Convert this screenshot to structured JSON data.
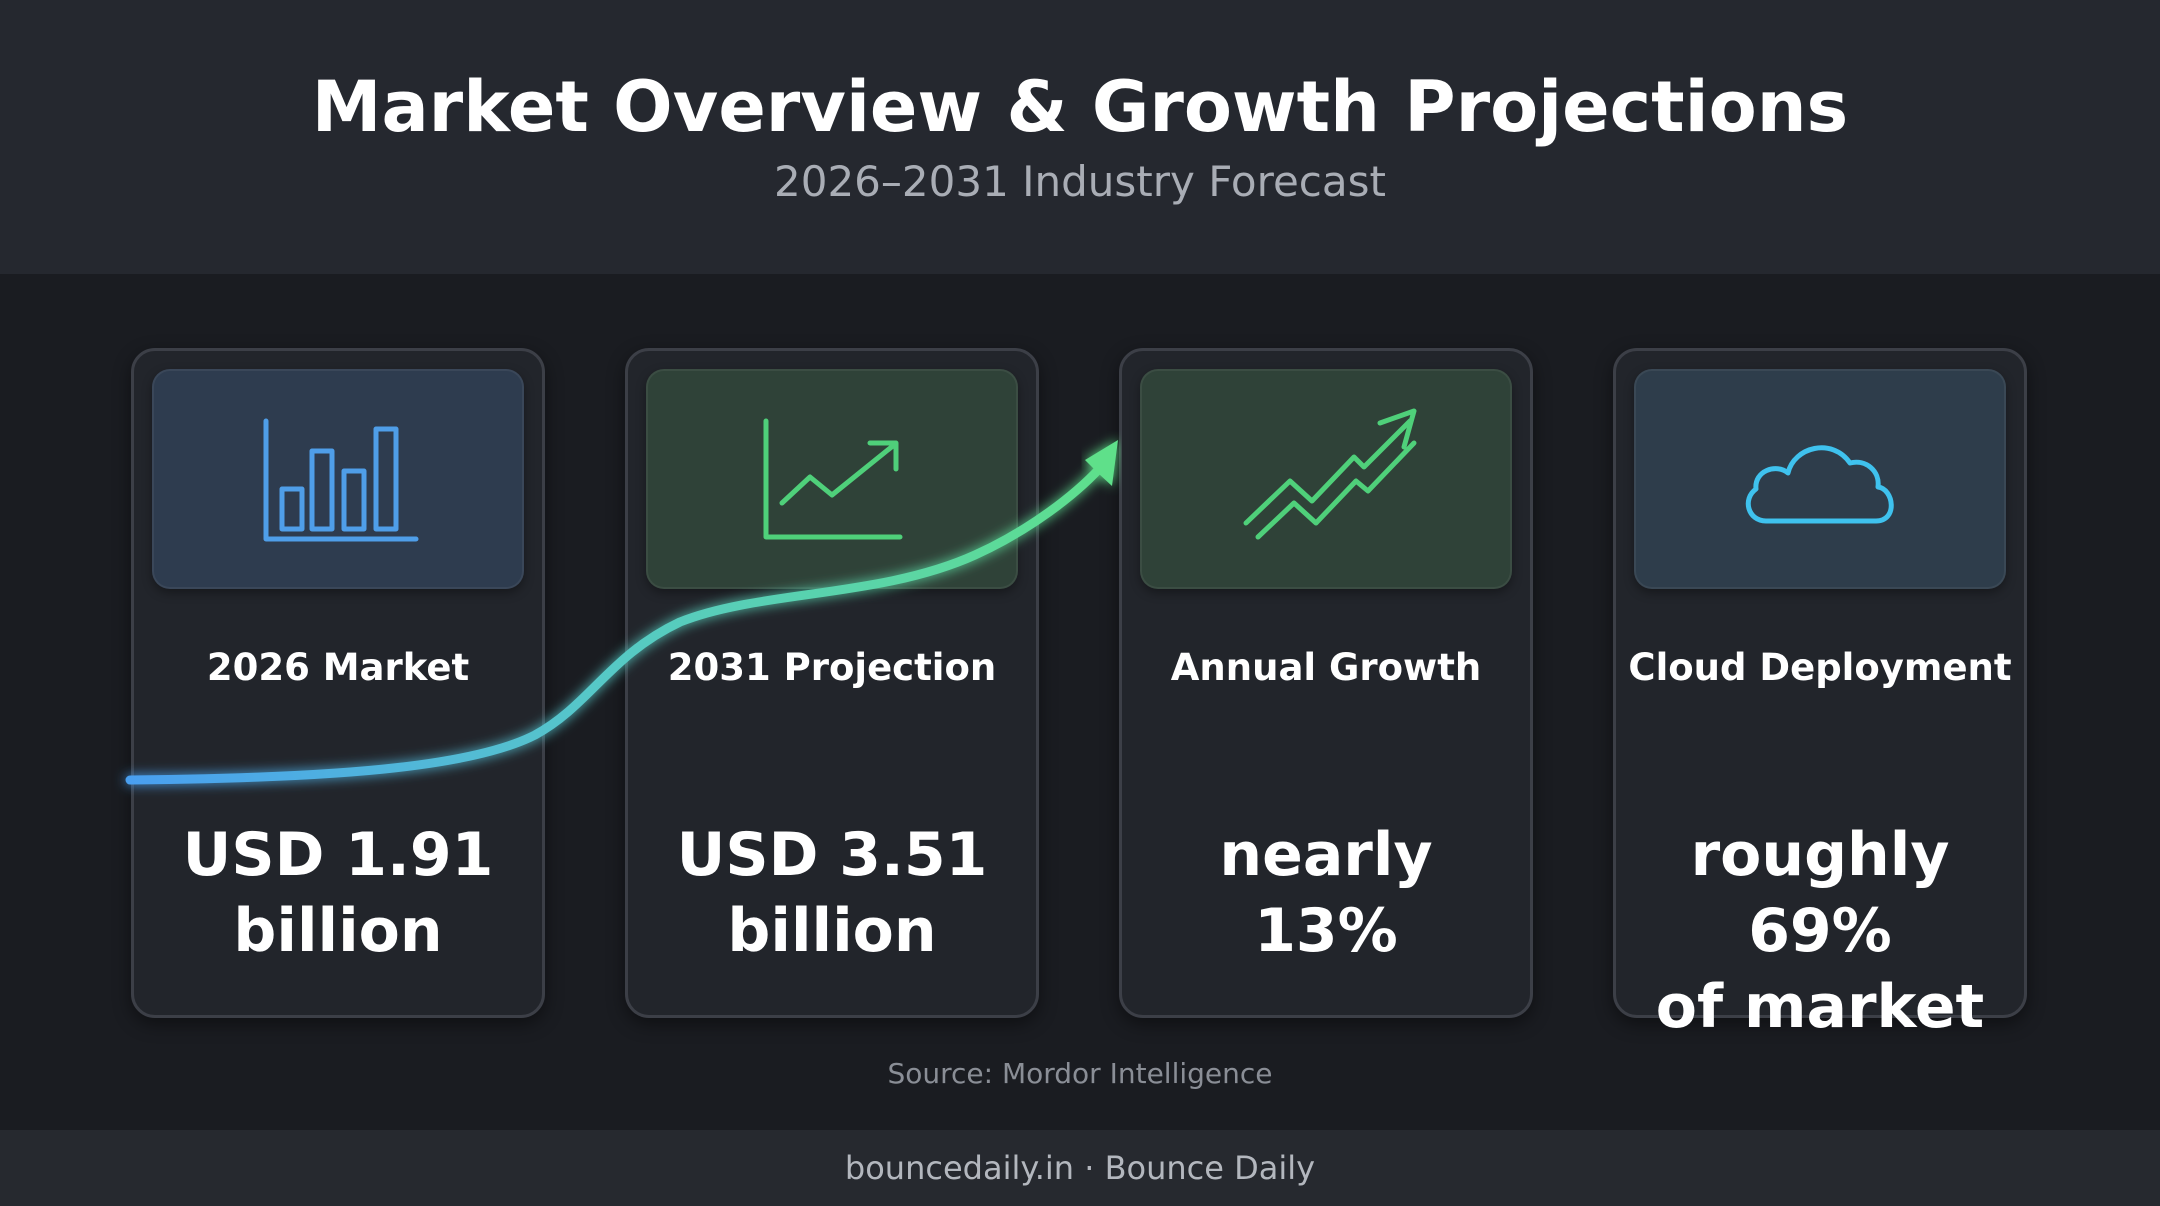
{
  "header": {
    "title": "Market Overview & Growth Projections",
    "subtitle": "2026–2031 Industry Forecast"
  },
  "cards": [
    {
      "icon": "bar-chart-icon",
      "label": "2026 Market",
      "value_line1": "USD 1.91",
      "value_line2": "billion",
      "accent": "#4f9ee8"
    },
    {
      "icon": "line-chart-up-icon",
      "label": "2031 Projection",
      "value_line1": "USD 3.51",
      "value_line2": "billion",
      "accent": "#4fd07a"
    },
    {
      "icon": "trending-up-arrow-icon",
      "label": "Annual Growth",
      "value_line1": "nearly",
      "value_line2": "13%",
      "accent": "#4fd07a"
    },
    {
      "icon": "cloud-icon",
      "label": "Cloud Deployment",
      "value_line1": "roughly 69%",
      "value_line2": "of market",
      "accent": "#3fc2ee"
    }
  ],
  "source": "Source: Mordor Intelligence",
  "footer": "bouncedaily.in · Bounce Daily",
  "colors": {
    "background": "#1a1c21",
    "header_bg": "#25282f",
    "card_bg": "#22252b",
    "curve_start": "#4a9ff0",
    "curve_end": "#5ee08a"
  }
}
